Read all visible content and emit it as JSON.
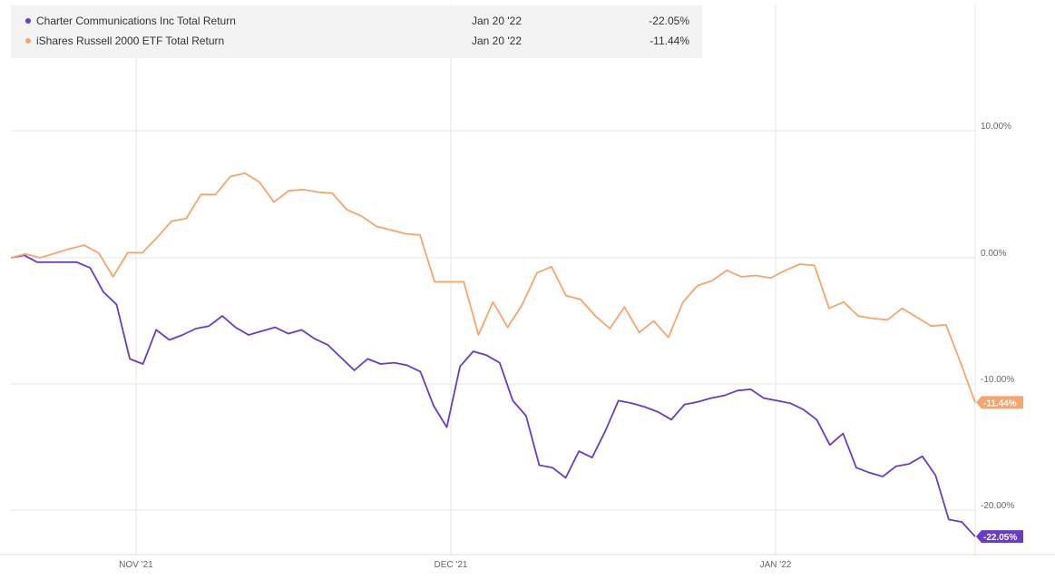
{
  "chart_data": {
    "type": "line",
    "x_tick_labels": [
      "NOV '21",
      "DEC '21",
      "JAN '22"
    ],
    "y_tick_labels": [
      "10.00%",
      "0.00%",
      "-10.00%",
      "-20.00%"
    ],
    "ylim": [
      -23.5,
      20
    ],
    "y_ticks": [
      10,
      0,
      -10,
      -20
    ],
    "grid": true,
    "legend_position": "top-left",
    "legend": [
      {
        "name": "Charter Communications Inc Total Return",
        "date": "Jan 20 '22",
        "value": "-22.05%"
      },
      {
        "name": "iShares Russell 2000 ETF Total Return",
        "date": "Jan 20 '22",
        "value": "-11.44%"
      }
    ],
    "series": [
      {
        "name": "Charter Communications Inc Total Return",
        "color": "#6a3bc8",
        "end_label": "-22.05%",
        "values": [
          0,
          0.2,
          -0.35,
          -0.35,
          -0.35,
          -0.35,
          -0.8,
          -2.7,
          -3.7,
          -8.0,
          -8.4,
          -5.7,
          -6.5,
          -6.1,
          -5.6,
          -5.4,
          -4.6,
          -5.5,
          -6.1,
          -5.8,
          -5.5,
          -6.0,
          -5.7,
          -6.4,
          -6.9,
          -7.9,
          -8.9,
          -8.0,
          -8.4,
          -8.3,
          -8.5,
          -9.0,
          -11.7,
          -13.4,
          -8.6,
          -7.4,
          -7.7,
          -8.3,
          -11.3,
          -12.5,
          -16.4,
          -16.6,
          -17.4,
          -15.3,
          -15.8,
          -13.7,
          -11.3,
          -11.5,
          -11.8,
          -12.2,
          -12.8,
          -11.6,
          -11.4,
          -11.1,
          -10.9,
          -10.5,
          -10.4,
          -11.1,
          -11.3,
          -11.5,
          -12.0,
          -12.8,
          -14.8,
          -13.9,
          -16.6,
          -17.0,
          -17.3,
          -16.5,
          -16.3,
          -15.7,
          -17.2,
          -20.7,
          -20.9,
          -22.05
        ]
      },
      {
        "name": "iShares Russell 2000 ETF Total Return",
        "color": "#f5a56d",
        "end_label": "-11.44%",
        "values": [
          0,
          0.3,
          0,
          0.35,
          0.7,
          1.0,
          0.4,
          -1.5,
          0.4,
          0.4,
          1.6,
          2.9,
          3.1,
          5.0,
          5.0,
          6.4,
          6.7,
          6.0,
          4.4,
          5.3,
          5.4,
          5.2,
          5.1,
          3.8,
          3.3,
          2.5,
          2.2,
          1.9,
          1.8,
          -1.9,
          -1.9,
          -1.9,
          -6.1,
          -3.5,
          -5.5,
          -3.7,
          -1.2,
          -0.7,
          -3.0,
          -3.3,
          -4.6,
          -5.6,
          -3.9,
          -5.9,
          -5.0,
          -6.3,
          -3.5,
          -2.2,
          -1.8,
          -1.0,
          -1.5,
          -1.4,
          -1.6,
          -1.0,
          -0.5,
          -0.6,
          -4.0,
          -3.5,
          -4.6,
          -4.8,
          -4.9,
          -4.0,
          -4.7,
          -5.4,
          -5.3,
          -8.3,
          -11.44
        ]
      }
    ]
  }
}
